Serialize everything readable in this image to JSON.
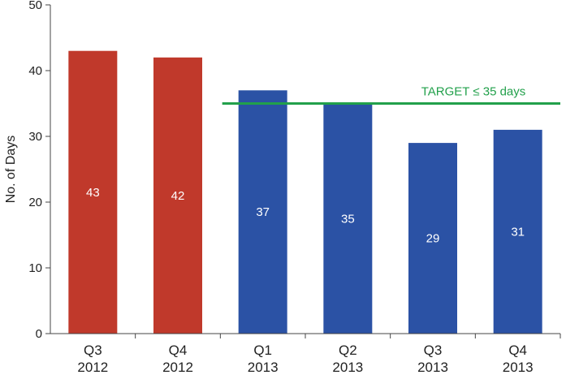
{
  "chart_data": {
    "type": "bar",
    "categories": [
      [
        "Q3",
        "2012"
      ],
      [
        "Q4",
        "2012"
      ],
      [
        "Q1",
        "2013"
      ],
      [
        "Q2",
        "2013"
      ],
      [
        "Q3",
        "2013"
      ],
      [
        "Q4",
        "2013"
      ]
    ],
    "values": [
      43,
      42,
      37,
      35,
      29,
      31
    ],
    "value_labels": [
      "43",
      "42",
      "37",
      "35",
      "29",
      "31"
    ],
    "bar_colors": [
      "#c0392b",
      "#c0392b",
      "#2b52a5",
      "#2b52a5",
      "#2b52a5",
      "#2b52a5"
    ],
    "xlabel": "",
    "ylabel": "No. of Days",
    "ylim": [
      0,
      50
    ],
    "yticks": [
      0,
      10,
      20,
      30,
      40,
      50
    ],
    "ytick_labels": [
      "0",
      "10",
      "20",
      "30",
      "40",
      "50"
    ],
    "grid": false,
    "target": {
      "value": 35,
      "label": "TARGET ≤ 35 days",
      "color": "#22a04b",
      "from_category_index": 2
    }
  }
}
